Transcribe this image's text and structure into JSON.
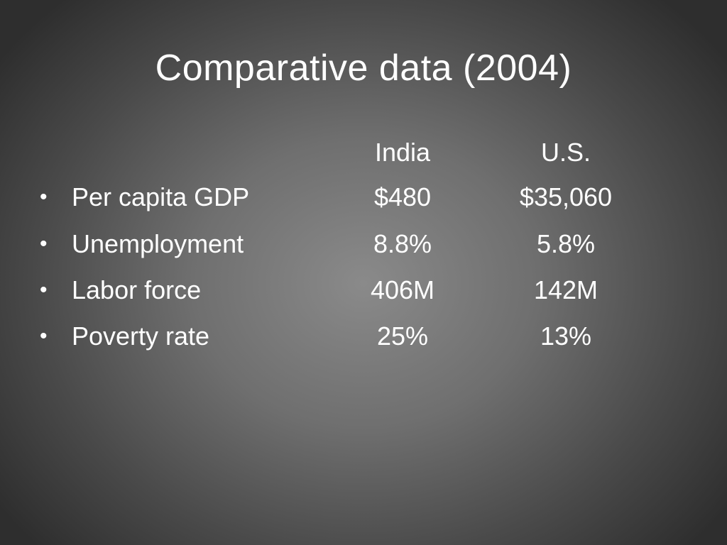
{
  "slide": {
    "title": "Comparative data (2004)",
    "columns": [
      "India",
      "U.S."
    ],
    "bullet": "•",
    "rows": [
      {
        "label": "Per capita GDP",
        "india": "$480",
        "us": "$35,060"
      },
      {
        "label": "Unemployment",
        "india": "8.8%",
        "us": "5.8%"
      },
      {
        "label": "Labor force",
        "india": "406M",
        "us": "142M"
      },
      {
        "label": "Poverty rate",
        "india": "25%",
        "us": "13%"
      }
    ]
  },
  "colors": {
    "text": "#ffffff",
    "background_center": "#8a8a8a",
    "background_edge": "#2e2e2e"
  }
}
